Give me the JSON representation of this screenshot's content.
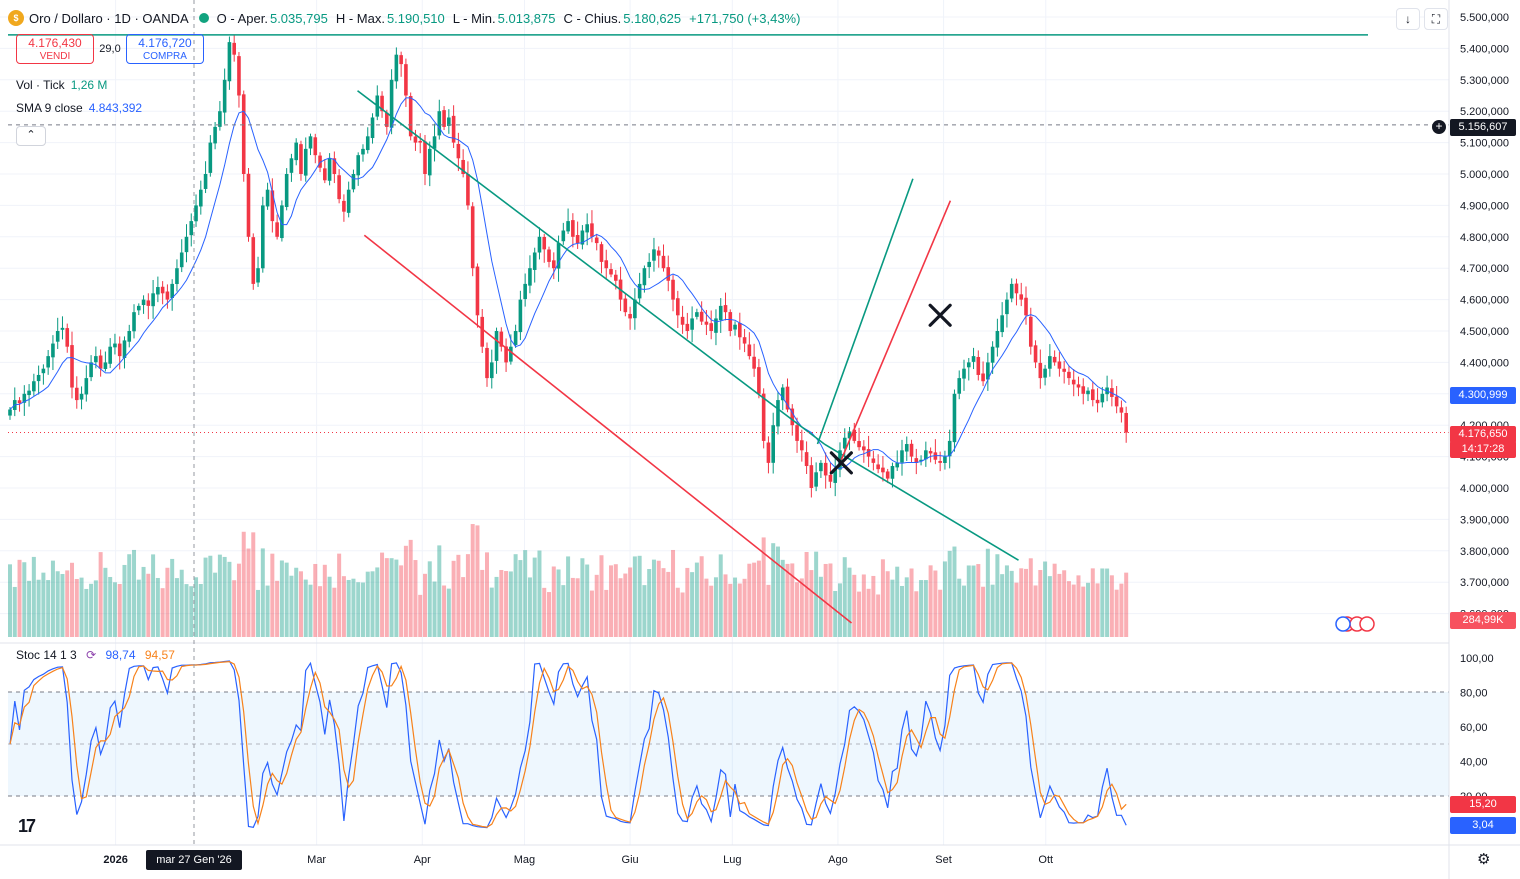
{
  "header": {
    "symbol_title": "Oro / Dollaro · 1D · OANDA",
    "open_label": "O - Aper.",
    "open_value": "5.035,795",
    "high_label": "H - Max.",
    "high_value": "5.190,510",
    "low_label": "L - Min.",
    "low_value": "5.013,875",
    "close_label": "C - Chius.",
    "close_value": "5.180,625",
    "change": "+171,750 (+3,43%)"
  },
  "trade": {
    "sell_price": "4.176,430",
    "sell_label": "VENDI",
    "spread": "29,0",
    "buy_price": "4.176,720",
    "buy_label": "COMPRA"
  },
  "indicators": {
    "vol_name": "Vol · Tick",
    "vol_value": "1,26 M",
    "sma_name": "SMA 9 close",
    "sma_value": "4.843,392",
    "stoch_name": "Stoc 14 1 3",
    "stoch_k": "98,74",
    "stoch_d": "94,57"
  },
  "colors": {
    "up": "#089981",
    "down": "#f23645",
    "sma": "#2962ff",
    "stoch_k": "#2962ff",
    "stoch_d": "#f7821b",
    "channel_green": "#089981",
    "channel_red": "#f23645"
  },
  "price_axis": [
    "5.500,000",
    "5.400,000",
    "5.300,000",
    "5.200,000",
    "5.100,000",
    "5.000,000",
    "4.900,000",
    "4.800,000",
    "4.700,000",
    "4.600,000",
    "4.500,000",
    "4.400,000",
    "4.300,000",
    "4.200,000",
    "4.100,000",
    "4.000,000",
    "3.900,000",
    "3.800,000",
    "3.700,000",
    "3.600,000"
  ],
  "stoch_axis": [
    "100,00",
    "80,00",
    "60,00",
    "40,00",
    "20,00"
  ],
  "price_tags": {
    "crosshair_price": "5.156,607",
    "sma_tag": "4.300,999",
    "last_price": "4.176,650",
    "countdown": "14:17:28",
    "volume_tag": "284,99K",
    "stoch_d_tag": "15,20",
    "stoch_k_tag": "3,04"
  },
  "time_axis": [
    "2026",
    "Mar",
    "Apr",
    "Mag",
    "Giu",
    "Lug",
    "Ago",
    "Set",
    "Ott"
  ],
  "crosshair_date": "mar 27 Gen '26",
  "chart_data": {
    "type": "candlestick",
    "x_start": "2025-12-01",
    "ylim": [
      3600,
      5500
    ],
    "price_axis_ticks": [
      5500,
      5400,
      5300,
      5200,
      5100,
      5000,
      4900,
      4800,
      4700,
      4600,
      4500,
      4400,
      4300,
      4200,
      4100,
      4000,
      3900,
      3800,
      3700,
      3600
    ],
    "close": [
      4250,
      4280,
      4270,
      4300,
      4310,
      4340,
      4360,
      4380,
      4420,
      4460,
      4500,
      4510,
      4450,
      4320,
      4280,
      4300,
      4350,
      4400,
      4420,
      4380,
      4400,
      4450,
      4460,
      4420,
      4470,
      4500,
      4560,
      4580,
      4600,
      4580,
      4620,
      4640,
      4620,
      4600,
      4650,
      4700,
      4750,
      4800,
      4850,
      4900,
      4950,
      5000,
      5100,
      5150,
      5200,
      5300,
      5420,
      5380,
      5250,
      5000,
      4800,
      4650,
      4700,
      4900,
      4950,
      4850,
      4800,
      4900,
      5000,
      5050,
      5100,
      5000,
      5080,
      5120,
      5060,
      5020,
      4980,
      5050,
      5000,
      4920,
      4880,
      4950,
      5000,
      5060,
      5080,
      5120,
      5180,
      5250,
      5200,
      5150,
      5300,
      5380,
      5350,
      5250,
      5120,
      5100,
      5100,
      5000,
      5080,
      5120,
      5200,
      5150,
      5180,
      5100,
      5050,
      5000,
      4900,
      4700,
      4550,
      4450,
      4350,
      4400,
      4500,
      4450,
      4400,
      4450,
      4500,
      4600,
      4650,
      4700,
      4750,
      4800,
      4760,
      4720,
      4700,
      4780,
      4820,
      4850,
      4800,
      4780,
      4820,
      4840,
      4800,
      4780,
      4720,
      4700,
      4680,
      4660,
      4600,
      4560,
      4540,
      4600,
      4650,
      4700,
      4720,
      4760,
      4740,
      4700,
      4660,
      4600,
      4550,
      4520,
      4500,
      4540,
      4560,
      4530,
      4520,
      4500,
      4540,
      4580,
      4560,
      4500,
      4520,
      4480,
      4460,
      4420,
      4380,
      4300,
      4150,
      4080,
      4200,
      4280,
      4320,
      4250,
      4200,
      4150,
      4120,
      4070,
      4000,
      4050,
      4080,
      4040,
      4020,
      4060,
      4120,
      4160,
      4180,
      4150,
      4130,
      4120,
      4100,
      4080,
      4060,
      4050,
      4030,
      4070,
      4080,
      4120,
      4140,
      4100,
      4080,
      4090,
      4120,
      4110,
      4090,
      4080,
      4100,
      4150,
      4300,
      4350,
      4380,
      4400,
      4420,
      4360,
      4340,
      4400,
      4450,
      4500,
      4550,
      4600,
      4650,
      4620,
      4600,
      4550,
      4450,
      4400,
      4350,
      4380,
      4420,
      4400,
      4380,
      4370,
      4350,
      4330,
      4320,
      4300,
      4310,
      4280,
      4270,
      4300,
      4320,
      4290,
      4260,
      4240,
      4176.65
    ],
    "sma9_last": 4300.999,
    "volume_unit": "K",
    "volume_last": 284.99,
    "stochastic": {
      "k_last": 3.04,
      "d_last": 15.2,
      "levels": [
        80,
        50,
        20
      ],
      "ylim": [
        0,
        100
      ]
    },
    "drawings": [
      {
        "type": "horizontal",
        "color": "channel_green",
        "y": 5443
      },
      {
        "type": "horizontal_dashed",
        "color": "#787b86",
        "y": 5156.6
      },
      {
        "type": "trendline",
        "color": "channel_green",
        "from": [
          "2026-03-13",
          5265
        ],
        "to": [
          "2026-07-28",
          4140
        ]
      },
      {
        "type": "trendline",
        "color": "channel_green",
        "from": [
          "2026-07-28",
          4140
        ],
        "to": [
          "2026-09-23",
          3770
        ]
      },
      {
        "type": "trendline",
        "color": "channel_red",
        "from": [
          "2026-03-15",
          4805
        ],
        "to": [
          "2026-08-05",
          3570
        ]
      },
      {
        "type": "trendline",
        "color": "channel_green",
        "from": [
          "2026-07-26",
          4140
        ],
        "to": [
          "2026-08-23",
          4985
        ]
      },
      {
        "type": "trendline",
        "color": "channel_red",
        "from": [
          "2026-08-02",
          4090
        ],
        "to": [
          "2026-09-03",
          4915
        ]
      },
      {
        "type": "marker_x",
        "at": [
          "2026-08-02",
          4080
        ]
      },
      {
        "type": "marker_x",
        "at": [
          "2026-08-31",
          4550
        ]
      }
    ]
  }
}
